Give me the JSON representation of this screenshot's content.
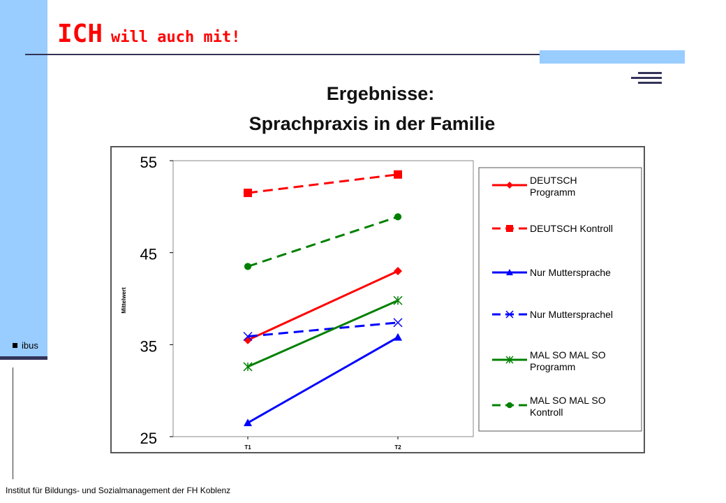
{
  "slide": {
    "title_main": "ICH",
    "title_rest": "will auch mit!",
    "side_label": "ibus",
    "footer": "Institut für Bildungs- und Sozialmanagement  der FH Koblenz"
  },
  "chart_data": {
    "type": "line",
    "title": "Ergebnisse:",
    "subtitle": "Sprachpraxis in der Familie",
    "xlabel": "",
    "ylabel": "Mittelwert",
    "categories": [
      "T1",
      "T2"
    ],
    "ylim": [
      25,
      55
    ],
    "yticks": [
      25,
      35,
      45,
      55
    ],
    "grid": false,
    "legend_position": "right",
    "series": [
      {
        "name": "DEUTSCH Programm",
        "lines": [
          "DEUTSCH",
          "Programm"
        ],
        "values": [
          35.5,
          43.0
        ],
        "color": "#ff0000",
        "dash": false,
        "marker": "diamond"
      },
      {
        "name": "DEUTSCH Kontroll",
        "lines": [
          "DEUTSCH Kontroll"
        ],
        "values": [
          51.5,
          53.5
        ],
        "color": "#ff0000",
        "dash": true,
        "marker": "square"
      },
      {
        "name": "Nur Muttersprache",
        "lines": [
          "Nur Muttersprache"
        ],
        "values": [
          26.5,
          35.8
        ],
        "color": "#0000ff",
        "dash": false,
        "marker": "triangle"
      },
      {
        "name": "Nur Muttersprachel",
        "lines": [
          "Nur Muttersprachel"
        ],
        "values": [
          35.9,
          37.4
        ],
        "color": "#0000ff",
        "dash": true,
        "marker": "x"
      },
      {
        "name": "MAL SO MAL SO Programm",
        "lines": [
          "MAL SO MAL SO",
          "Programm"
        ],
        "values": [
          32.6,
          39.8
        ],
        "color": "#008000",
        "dash": false,
        "marker": "asterisk"
      },
      {
        "name": "MAL SO MAL SO Kontroll",
        "lines": [
          "MAL SO MAL SO",
          "Kontroll"
        ],
        "values": [
          43.5,
          48.9
        ],
        "color": "#008000",
        "dash": true,
        "marker": "circle"
      }
    ]
  }
}
